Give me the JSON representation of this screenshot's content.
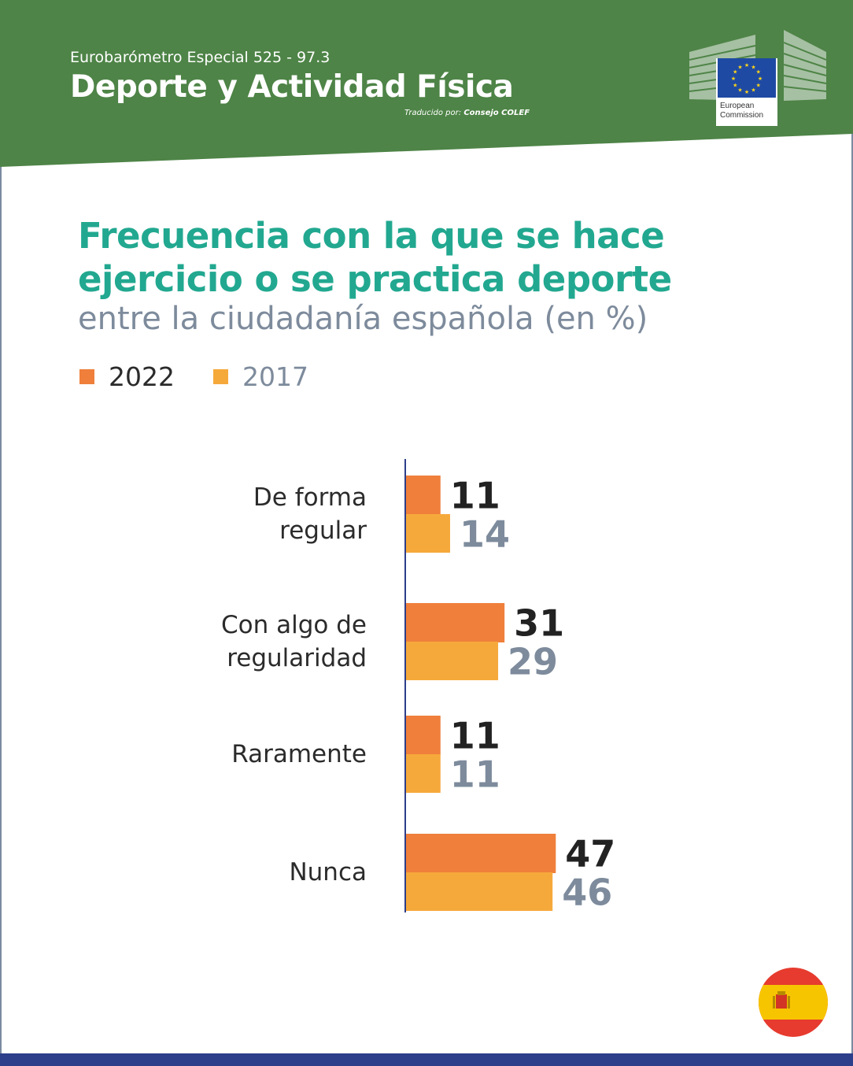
{
  "header": {
    "supertitle": "Eurobarómetro Especial 525 - 97.3",
    "title": "Deporte y Actividad Física",
    "translator_prefix": "Traducido por: ",
    "translator_name": "Consejo COLEF",
    "logo_line1": "European",
    "logo_line2": "Commission"
  },
  "colors": {
    "header_green": "#4e8447",
    "title_teal": "#22a890",
    "subtitle_gray": "#7d8b9c",
    "series_2022": "#ef7f3b",
    "series_2017": "#f6a93b",
    "axis": "#2d3e8a",
    "value_dark": "#222222",
    "value_gray": "#7d8b9c"
  },
  "chart_data": {
    "type": "bar",
    "orientation": "horizontal",
    "title_line1": "Frecuencia con la que se hace",
    "title_line2": "ejercicio o se practica deporte",
    "subtitle": "entre la ciudadanía española (en %)",
    "legend_placement": "top-left",
    "grid": false,
    "xlim": [
      0,
      100
    ],
    "categories": [
      [
        "De forma",
        "regular"
      ],
      [
        "Con algo de",
        "regularidad"
      ],
      [
        "Raramente"
      ],
      [
        "Nunca"
      ]
    ],
    "series": [
      {
        "name": "2022",
        "values": [
          11,
          31,
          11,
          47
        ]
      },
      {
        "name": "2017",
        "values": [
          14,
          29,
          11,
          46
        ]
      }
    ]
  }
}
